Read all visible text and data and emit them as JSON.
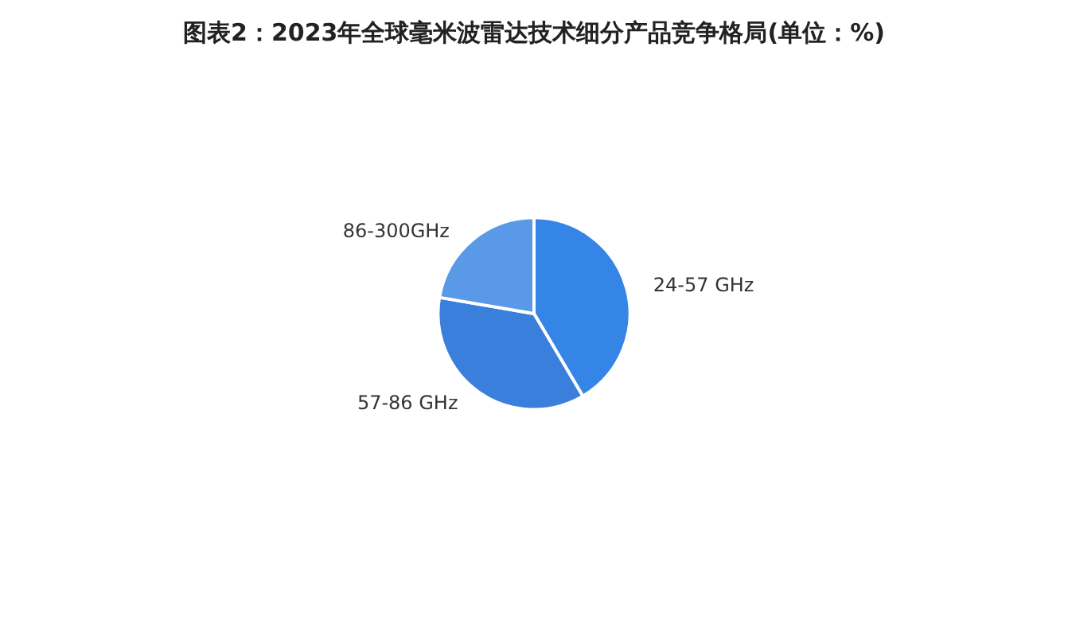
{
  "chart_data": {
    "type": "pie",
    "title": "图表2：2023年全球毫米波雷达技术细分产品竞争格局(单位：%)",
    "categories": [
      "24-57 GHz",
      "57-86 GHz",
      "86-300GHz"
    ],
    "values": [
      41.5,
      36.2,
      22.3
    ],
    "colors": [
      "#3585e6",
      "#3a7fdc",
      "#5a99e8"
    ],
    "legend": false
  }
}
